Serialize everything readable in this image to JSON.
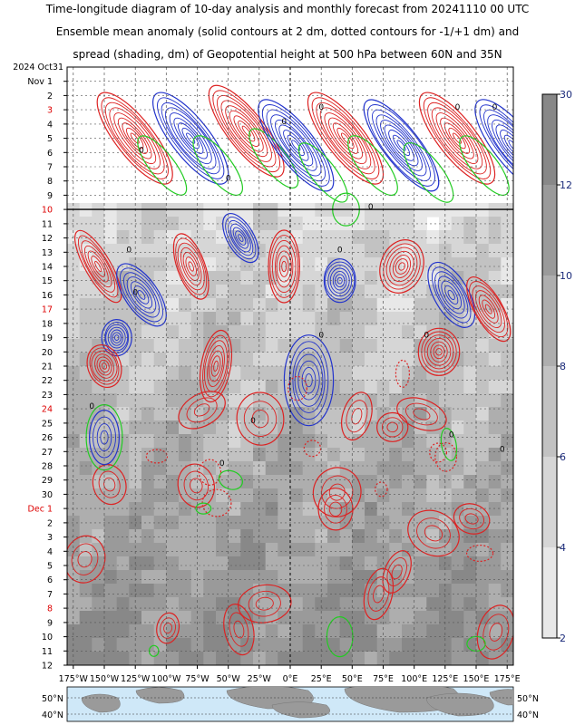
{
  "title_lines": [
    "Time-longitude diagram of 10-day analysis and monthly forecast from 20241110 00 UTC",
    "Ensemble mean anomaly (solid contours at 2 dm, dotted contours for -1/+1 dm) and",
    "spread (shading, dm) of Geopotential height at 500 hPa between 60N and 35N"
  ],
  "chart_data": {
    "type": "heatmap",
    "x_tick_labels": [
      "175°W",
      "150°W",
      "125°W",
      "100°W",
      "75°W",
      "50°W",
      "25°W",
      "0°E",
      "25°E",
      "50°E",
      "75°E",
      "100°E",
      "125°E",
      "150°E",
      "175°E"
    ],
    "x_tick_values": [
      -175,
      -150,
      -125,
      -100,
      -75,
      -50,
      -25,
      0,
      25,
      50,
      75,
      100,
      125,
      150,
      175
    ],
    "xlim": [
      -180,
      180
    ],
    "y_top_label": "2024 Oct31",
    "y_rows": [
      {
        "label": "Nov  1",
        "red": false
      },
      {
        "label": "2",
        "red": false
      },
      {
        "label": "3",
        "red": true
      },
      {
        "label": "4",
        "red": false
      },
      {
        "label": "5",
        "red": false
      },
      {
        "label": "6",
        "red": false
      },
      {
        "label": "7",
        "red": false
      },
      {
        "label": "8",
        "red": false
      },
      {
        "label": "9",
        "red": false
      },
      {
        "label": "10",
        "red": true
      },
      {
        "label": "11",
        "red": false
      },
      {
        "label": "12",
        "red": false
      },
      {
        "label": "13",
        "red": false
      },
      {
        "label": "14",
        "red": false
      },
      {
        "label": "15",
        "red": false
      },
      {
        "label": "16",
        "red": false
      },
      {
        "label": "17",
        "red": true
      },
      {
        "label": "18",
        "red": false
      },
      {
        "label": "19",
        "red": false
      },
      {
        "label": "20",
        "red": false
      },
      {
        "label": "21",
        "red": false
      },
      {
        "label": "22",
        "red": false
      },
      {
        "label": "23",
        "red": false
      },
      {
        "label": "24",
        "red": true
      },
      {
        "label": "25",
        "red": false
      },
      {
        "label": "26",
        "red": false
      },
      {
        "label": "27",
        "red": false
      },
      {
        "label": "28",
        "red": false
      },
      {
        "label": "29",
        "red": false
      },
      {
        "label": "30",
        "red": false
      },
      {
        "label": "Dec  1",
        "red": true
      },
      {
        "label": "2",
        "red": false
      },
      {
        "label": "3",
        "red": false
      },
      {
        "label": "4",
        "red": false
      },
      {
        "label": "5",
        "red": false
      },
      {
        "label": "6",
        "red": false
      },
      {
        "label": "7",
        "red": false
      },
      {
        "label": "8",
        "red": true
      },
      {
        "label": "9",
        "red": false
      },
      {
        "label": "10",
        "red": false
      },
      {
        "label": "11",
        "red": false
      },
      {
        "label": "12",
        "red": false
      }
    ],
    "analysis_end_day": "10",
    "colorbar": {
      "ticks": [
        {
          "v": 30,
          "label": "30"
        },
        {
          "v": 12,
          "label": "12"
        },
        {
          "v": 10,
          "label": "10"
        },
        {
          "v": 8,
          "label": "8"
        },
        {
          "v": 6,
          "label": "6"
        },
        {
          "v": 4,
          "label": "4"
        },
        {
          "v": 2,
          "label": "2"
        }
      ],
      "colors": [
        "#e8e8e8",
        "#d6d6d6",
        "#c2c2c2",
        "#aeaeae",
        "#9a9a9a",
        "#888888"
      ]
    },
    "contour_label": "0",
    "zero_contour_color": "#22cc22",
    "positive_color": "#dd2222",
    "negative_color": "#2233cc",
    "grid": true,
    "map_lat_labels": [
      "50°N",
      "40°N"
    ]
  }
}
